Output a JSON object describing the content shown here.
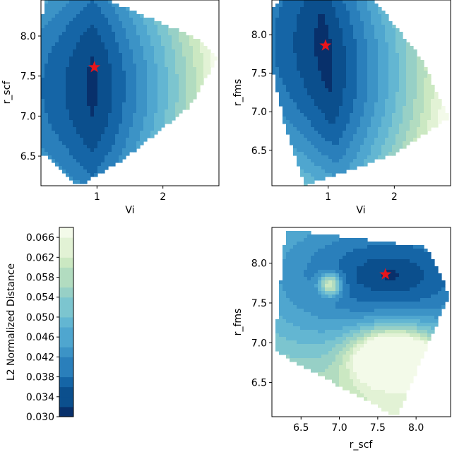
{
  "colorscale": [
    "#08306b",
    "#0b4f8d",
    "#1565a6",
    "#2a7fbb",
    "#3c93c6",
    "#4fa6cf",
    "#63b6d2",
    "#7cc5cf",
    "#97d0c6",
    "#b2dcc0",
    "#cbe8c2",
    "#e2f2d5",
    "#f3fae9"
  ],
  "star_color": "#e8151b",
  "colorbar": {
    "label": "L2 Normalized Distance",
    "ticks": [
      "0.030",
      "0.034",
      "0.038",
      "0.042",
      "0.046",
      "0.050",
      "0.054",
      "0.058",
      "0.062",
      "0.066"
    ]
  },
  "chart_data": [
    {
      "type": "contour",
      "xlabel": "Vi",
      "ylabel": "r_scf",
      "xlim": [
        0.15,
        2.85
      ],
      "ylim": [
        6.13,
        8.45
      ],
      "xticks": [
        "1",
        "2"
      ],
      "yticks": [
        "6.5",
        "7.0",
        "7.5",
        "8.0"
      ],
      "optimum": {
        "x": 0.96,
        "y": 7.61
      },
      "hull": [
        [
          0.2,
          8.45
        ],
        [
          1.15,
          8.45
        ],
        [
          2.5,
          7.98
        ],
        [
          2.82,
          7.72
        ],
        [
          2.4,
          7.12
        ],
        [
          1.35,
          6.43
        ],
        [
          0.72,
          6.13
        ],
        [
          0.15,
          6.55
        ],
        [
          0.15,
          8.1
        ]
      ],
      "level_range": [
        0.031,
        0.067
      ],
      "grid": false
    },
    {
      "type": "contour",
      "xlabel": "Vi",
      "ylabel": "r_fms",
      "xlim": [
        0.15,
        2.85
      ],
      "ylim": [
        6.04,
        8.45
      ],
      "xticks": [
        "1",
        "2"
      ],
      "yticks": [
        "6.5",
        "7.0",
        "7.5",
        "8.0"
      ],
      "optimum": {
        "x": 0.96,
        "y": 7.86
      },
      "hull": [
        [
          0.25,
          8.45
        ],
        [
          1.7,
          8.45
        ],
        [
          2.4,
          7.7
        ],
        [
          2.82,
          6.92
        ],
        [
          2.0,
          6.45
        ],
        [
          0.65,
          6.04
        ],
        [
          0.35,
          6.8
        ],
        [
          0.15,
          7.6
        ],
        [
          0.15,
          8.3
        ]
      ],
      "level_range": [
        0.031,
        0.067
      ],
      "grid": false
    },
    {
      "type": "contour",
      "xlabel": "r_scf",
      "ylabel": "r_fms",
      "xlim": [
        6.12,
        8.45
      ],
      "ylim": [
        6.07,
        8.45
      ],
      "xticks": [
        "6.5",
        "7.0",
        "7.5",
        "8.0"
      ],
      "yticks": [
        "6.5",
        "7.0",
        "7.5",
        "8.0"
      ],
      "optimum": {
        "x": 7.6,
        "y": 7.86
      },
      "hull": [
        [
          6.3,
          8.42
        ],
        [
          8.15,
          8.2
        ],
        [
          8.43,
          7.6
        ],
        [
          7.75,
          6.07
        ],
        [
          6.15,
          6.9
        ]
      ],
      "level_range": [
        0.031,
        0.067
      ],
      "grid": false
    }
  ]
}
